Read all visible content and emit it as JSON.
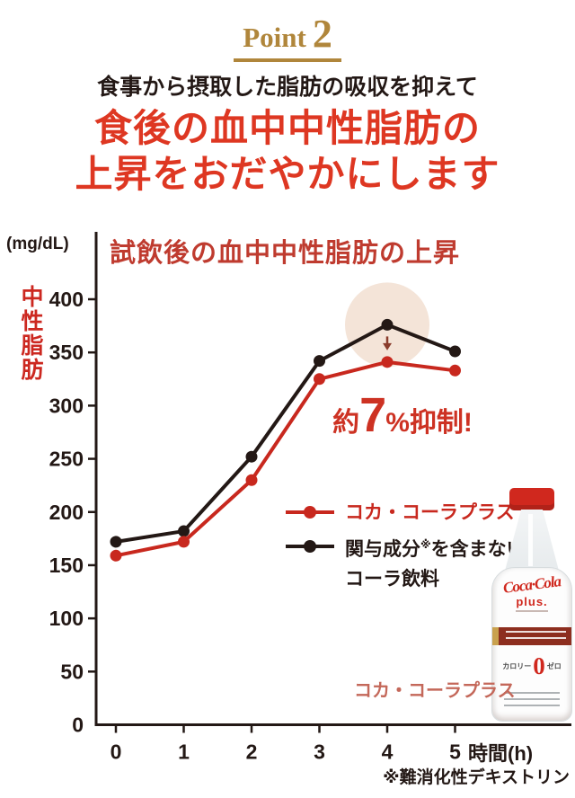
{
  "header": {
    "point_word": "Point",
    "point_number": "2",
    "subtitle": "食事から摂取した脂肪の吸収を抑えて",
    "headline_line1": "食後の血中中性脂肪の",
    "headline_line2": "上昇をおだやかにします"
  },
  "chart_data": {
    "type": "line",
    "title": "試飲後の血中中性脂肪の上昇",
    "y_unit": "(mg/dL)",
    "ylabel": "中性脂肪",
    "x_unit": "時間(h)",
    "x": [
      0,
      1,
      2,
      3,
      4,
      5
    ],
    "ylim": [
      0,
      400
    ],
    "ytick_step": 50,
    "grid": false,
    "legend_position": "right-middle",
    "series": [
      {
        "name": "コカ・コーラプラス",
        "color": "#c8281e",
        "values": [
          159,
          172,
          230,
          325,
          341,
          333
        ]
      },
      {
        "name": "関与成分※を含まないコーラ飲料",
        "color": "#231815",
        "values": [
          172,
          182,
          252,
          342,
          376,
          351
        ]
      }
    ],
    "annotation": {
      "text": "約7%抑制!",
      "prefix": "約",
      "big": "7",
      "suffix": "%抑制!",
      "color": "#cd3223"
    },
    "highlight": {
      "series_index": 1,
      "x_index": 4,
      "color": "#f4e4d8"
    },
    "arrow_color": "#8a3c2c"
  },
  "legend": {
    "item1_label": "コカ・コーラプラス",
    "item2_line1_pre": "関与成分",
    "item2_sup": "※",
    "item2_line1_post": "を含まない",
    "item2_line2": "コーラ飲料"
  },
  "bottle": {
    "logo": "Coca·Cola",
    "plus": "plus.",
    "calorie_left": "カロリー",
    "zero": "0",
    "calorie_right": "ゼロ",
    "caption": "コカ・コーラプラス"
  },
  "footnote": "※難消化性デキストリン",
  "colors": {
    "gold": "#b0863b",
    "headline_red": "#de3722",
    "title_red": "#bf3b2f",
    "series_red": "#c8281e",
    "series_black": "#231815",
    "highlight_beige": "#f4e4d8",
    "caption_red": "#c4685a"
  }
}
